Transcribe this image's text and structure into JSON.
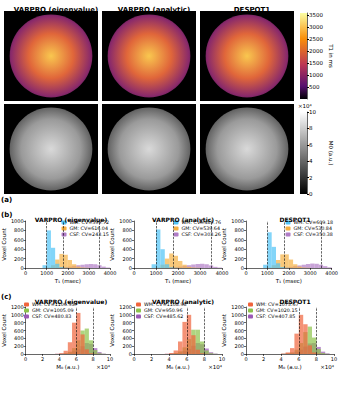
{
  "panel_labels": [
    "(a)",
    "(b)",
    "(c)"
  ],
  "maps": {
    "titles": [
      "VARPRO (eigenvalue)",
      "VARPRO (analytic)",
      "DESPOT1"
    ],
    "t1_colorbar": {
      "label": "T1 in ms",
      "clim": [
        0,
        3600
      ],
      "ticks": [
        500,
        1000,
        1500,
        2000,
        2500,
        3000,
        3500
      ]
    },
    "m0_colorbar": {
      "label": "M0 (a.u.)",
      "scale_label": "×10⁴",
      "clim": [
        0,
        10
      ],
      "ticks": [
        0,
        2,
        4,
        6,
        8,
        10
      ]
    }
  },
  "chart_data": [
    {
      "type": "histogram",
      "title": "VARPRO (eigenvalue)",
      "x_label": "T₁ (msec)",
      "y_label": "Voxel Count",
      "bins": [
        0,
        200,
        400,
        600,
        800,
        1000,
        1200,
        1400,
        1600,
        1800,
        2000,
        2200,
        2400,
        2600,
        2800,
        3000,
        3200,
        3400,
        3600,
        3800,
        4000
      ],
      "series": [
        {
          "name": "WM: CV=599.72",
          "color": "#4fc3f7",
          "values": [
            0,
            0,
            0,
            0,
            60,
            800,
            430,
            90,
            20,
            5,
            0,
            0,
            0,
            0,
            0,
            0,
            0,
            0,
            0,
            0
          ]
        },
        {
          "name": "GM: CV=616.04",
          "color": "#f5b041",
          "values": [
            0,
            0,
            0,
            0,
            0,
            10,
            60,
            180,
            300,
            280,
            170,
            80,
            30,
            10,
            5,
            0,
            0,
            0,
            0,
            0
          ]
        },
        {
          "name": "CSF: CV=243.15",
          "color": "#b07cc6",
          "values": [
            0,
            0,
            0,
            0,
            0,
            0,
            0,
            5,
            10,
            20,
            30,
            45,
            60,
            70,
            80,
            85,
            80,
            60,
            30,
            10
          ]
        }
      ],
      "ref_lines": [
        1000,
        1800,
        3500
      ],
      "xlim": [
        0,
        4000
      ],
      "xticks": [
        0,
        1000,
        2000,
        3000,
        4000
      ],
      "ylim": [
        0,
        1000
      ],
      "yticks": [
        0,
        200,
        400,
        600,
        800,
        1000
      ],
      "grid": false,
      "legend": "top-right"
    },
    {
      "type": "histogram",
      "title": "VARPRO (analytic)",
      "x_label": "T₁ (msec)",
      "y_label": "Voxel Count",
      "bins": [
        0,
        200,
        400,
        600,
        800,
        1000,
        1200,
        1400,
        1600,
        1800,
        2000,
        2200,
        2400,
        2600,
        2800,
        3000,
        3200,
        3400,
        3600,
        3800,
        4000
      ],
      "series": [
        {
          "name": "WM: CV=489.76",
          "color": "#4fc3f7",
          "values": [
            0,
            0,
            0,
            0,
            80,
            820,
            400,
            80,
            15,
            5,
            0,
            0,
            0,
            0,
            0,
            0,
            0,
            0,
            0,
            0
          ]
        },
        {
          "name": "GM: CV=539.64",
          "color": "#f5b041",
          "values": [
            0,
            0,
            0,
            0,
            0,
            10,
            70,
            200,
            310,
            260,
            150,
            70,
            25,
            10,
            5,
            0,
            0,
            0,
            0,
            0
          ]
        },
        {
          "name": "CSF: CV=303.26",
          "color": "#b07cc6",
          "values": [
            0,
            0,
            0,
            0,
            0,
            0,
            0,
            5,
            10,
            20,
            30,
            45,
            60,
            75,
            85,
            90,
            80,
            55,
            25,
            10
          ]
        }
      ],
      "ref_lines": [
        1000,
        1800,
        3500
      ],
      "xlim": [
        0,
        4000
      ],
      "xticks": [
        0,
        1000,
        2000,
        3000,
        4000
      ],
      "ylim": [
        0,
        1000
      ],
      "yticks": [
        0,
        200,
        400,
        600,
        800,
        1000
      ],
      "grid": false,
      "legend": "top-right"
    },
    {
      "type": "histogram",
      "title": "DESPOT1",
      "x_label": "T₁ (msec)",
      "y_label": "Voxel Count",
      "bins": [
        0,
        200,
        400,
        600,
        800,
        1000,
        1200,
        1400,
        1600,
        1800,
        2000,
        2200,
        2400,
        2600,
        2800,
        3000,
        3200,
        3400,
        3600,
        3800,
        4000
      ],
      "series": [
        {
          "name": "WM: CV=609.18",
          "color": "#4fc3f7",
          "values": [
            0,
            0,
            0,
            0,
            70,
            760,
            450,
            100,
            20,
            5,
            0,
            0,
            0,
            0,
            0,
            0,
            0,
            0,
            0,
            0
          ]
        },
        {
          "name": "GM: CV=530.84",
          "color": "#f5b041",
          "values": [
            0,
            0,
            0,
            0,
            0,
            10,
            60,
            170,
            290,
            290,
            180,
            80,
            30,
            10,
            5,
            0,
            0,
            0,
            0,
            0
          ]
        },
        {
          "name": "CSF: CV=350.38",
          "color": "#b07cc6",
          "values": [
            0,
            0,
            0,
            0,
            0,
            0,
            0,
            5,
            10,
            15,
            25,
            40,
            55,
            70,
            85,
            95,
            90,
            70,
            40,
            15
          ]
        }
      ],
      "ref_lines": [
        1000,
        1800,
        3500
      ],
      "xlim": [
        0,
        4000
      ],
      "xticks": [
        0,
        1000,
        2000,
        3000,
        4000
      ],
      "ylim": [
        0,
        1000
      ],
      "yticks": [
        0,
        200,
        400,
        600,
        800,
        1000
      ],
      "grid": false,
      "legend": "top-right"
    },
    {
      "type": "histogram",
      "title": "VARPRO (eigenvalue)",
      "x_label": "M₀ (a.u.)",
      "x_scale_label": "×10⁴",
      "y_label": "Voxel Count",
      "bins": [
        0,
        0.5,
        1,
        1.5,
        2,
        2.5,
        3,
        3.5,
        4,
        4.5,
        5,
        5.5,
        6,
        6.5,
        7,
        7.5,
        8,
        8.5,
        9,
        9.5,
        10
      ],
      "series": [
        {
          "name": "WM: CV=1106.93",
          "color": "#f0643c",
          "values": [
            0,
            0,
            0,
            0,
            0,
            0,
            0,
            5,
            20,
            80,
            300,
            800,
            1050,
            500,
            120,
            20,
            5,
            0,
            0,
            0
          ]
        },
        {
          "name": "GM: CV=1005.09",
          "color": "#8bc34a",
          "values": [
            0,
            0,
            0,
            0,
            0,
            0,
            0,
            0,
            5,
            20,
            60,
            150,
            350,
            600,
            650,
            350,
            100,
            20,
            5,
            0
          ]
        },
        {
          "name": "CSF: CV=480.83",
          "color": "#9b59b6",
          "values": [
            0,
            0,
            0,
            0,
            0,
            0,
            0,
            5,
            10,
            20,
            40,
            70,
            120,
            200,
            280,
            260,
            150,
            50,
            10,
            0
          ]
        }
      ],
      "ref_lines": [
        6,
        8
      ],
      "xlim": [
        0,
        10
      ],
      "xticks": [
        0,
        2,
        4,
        6,
        8,
        10
      ],
      "ylim": [
        0,
        1200
      ],
      "yticks": [
        0,
        200,
        400,
        600,
        800,
        1000,
        1200
      ],
      "grid": false,
      "legend": "top-left"
    },
    {
      "type": "histogram",
      "title": "VARPRO (analytic)",
      "x_label": "M₀ (a.u.)",
      "x_scale_label": "×10⁴",
      "y_label": "Voxel Count",
      "bins": [
        0,
        0.5,
        1,
        1.5,
        2,
        2.5,
        3,
        3.5,
        4,
        4.5,
        5,
        5.5,
        6,
        6.5,
        7,
        7.5,
        8,
        8.5,
        9,
        9.5,
        10
      ],
      "series": [
        {
          "name": "WM: CV=1108.98",
          "color": "#f0643c",
          "values": [
            0,
            0,
            0,
            0,
            0,
            0,
            0,
            5,
            25,
            90,
            320,
            820,
            1000,
            480,
            110,
            20,
            5,
            0,
            0,
            0
          ]
        },
        {
          "name": "GM: CV=950.96",
          "color": "#8bc34a",
          "values": [
            0,
            0,
            0,
            0,
            0,
            0,
            0,
            0,
            5,
            25,
            70,
            170,
            380,
            620,
            620,
            320,
            90,
            20,
            5,
            0
          ]
        },
        {
          "name": "CSF: CV=485.62",
          "color": "#9b59b6",
          "values": [
            0,
            0,
            0,
            0,
            0,
            0,
            0,
            5,
            10,
            20,
            40,
            75,
            130,
            210,
            280,
            250,
            140,
            45,
            10,
            0
          ]
        }
      ],
      "ref_lines": [
        6,
        8
      ],
      "xlim": [
        0,
        10
      ],
      "xticks": [
        0,
        2,
        4,
        6,
        8,
        10
      ],
      "ylim": [
        0,
        1200
      ],
      "yticks": [
        0,
        200,
        400,
        600,
        800,
        1000,
        1200
      ],
      "grid": false,
      "legend": "top-left"
    },
    {
      "type": "histogram",
      "title": "DESPOT1",
      "x_label": "M₀ (a.u.)",
      "x_scale_label": "×10⁴",
      "y_label": "Voxel Count",
      "bins": [
        0,
        0.5,
        1,
        1.5,
        2,
        2.5,
        3,
        3.5,
        4,
        4.5,
        5,
        5.5,
        6,
        6.5,
        7,
        7.5,
        8,
        8.5,
        9,
        9.5,
        10
      ],
      "series": [
        {
          "name": "WM: CV=1075.67",
          "color": "#f0643c",
          "values": [
            0,
            0,
            0,
            0,
            0,
            0,
            0,
            0,
            10,
            40,
            150,
            520,
            1000,
            760,
            220,
            40,
            10,
            0,
            0,
            0
          ]
        },
        {
          "name": "GM: CV=1020.15",
          "color": "#8bc34a",
          "values": [
            0,
            0,
            0,
            0,
            0,
            0,
            0,
            0,
            5,
            15,
            40,
            110,
            280,
            560,
            700,
            420,
            130,
            25,
            5,
            0
          ]
        },
        {
          "name": "CSF: CV=407.85",
          "color": "#9b59b6",
          "values": [
            0,
            0,
            0,
            0,
            0,
            0,
            0,
            0,
            5,
            15,
            30,
            60,
            110,
            190,
            270,
            280,
            180,
            60,
            15,
            0
          ]
        }
      ],
      "ref_lines": [
        6,
        8
      ],
      "xlim": [
        0,
        10
      ],
      "xticks": [
        0,
        2,
        4,
        6,
        8,
        10
      ],
      "ylim": [
        0,
        1200
      ],
      "yticks": [
        0,
        200,
        400,
        600,
        800,
        1000,
        1200
      ],
      "grid": false,
      "legend": "top-left"
    }
  ]
}
